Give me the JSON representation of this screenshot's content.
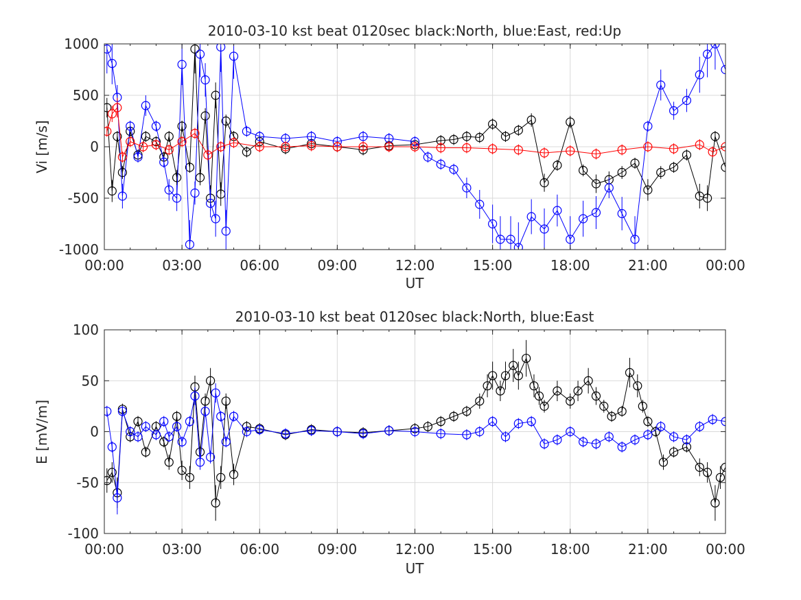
{
  "colors": {
    "north": "#000000",
    "east": "#0000ff",
    "up": "#ff0000",
    "grid": "#d9d9d9",
    "axis": "#262626"
  },
  "chart_data": [
    {
      "type": "scatter",
      "title": "2010-03-10 kst beat 0120sec black:North, blue:East, red:Up",
      "xlabel": "UT",
      "ylabel": "Vi [m/s]",
      "xlim": [
        0,
        24
      ],
      "ylim": [
        -1000,
        1000
      ],
      "xticks": [
        0,
        3,
        6,
        9,
        12,
        15,
        18,
        21,
        24
      ],
      "xticklabels": [
        "00:00",
        "03:00",
        "06:00",
        "09:00",
        "12:00",
        "15:00",
        "18:00",
        "21:00",
        "00:00"
      ],
      "yticks": [
        -1000,
        -500,
        0,
        500,
        1000
      ],
      "yticklabels": [
        "-1000",
        "-500",
        "0",
        "500",
        "1000"
      ],
      "grid": true,
      "marker": "open-circle-with-errorbar",
      "series": [
        {
          "name": "North",
          "color": "#000000",
          "points": [
            [
              0.1,
              380
            ],
            [
              0.3,
              -430
            ],
            [
              0.5,
              100
            ],
            [
              0.7,
              -250
            ],
            [
              1.0,
              150
            ],
            [
              1.3,
              -80
            ],
            [
              1.6,
              100
            ],
            [
              2.0,
              50
            ],
            [
              2.3,
              -100
            ],
            [
              2.5,
              100
            ],
            [
              2.8,
              -300
            ],
            [
              3.0,
              200
            ],
            [
              3.3,
              -200
            ],
            [
              3.5,
              950
            ],
            [
              3.7,
              -300
            ],
            [
              3.9,
              300
            ],
            [
              4.1,
              -500
            ],
            [
              4.3,
              500
            ],
            [
              4.5,
              -460
            ],
            [
              4.7,
              250
            ],
            [
              5.0,
              100
            ],
            [
              5.5,
              -50
            ],
            [
              6.0,
              50
            ],
            [
              7.0,
              -20
            ],
            [
              8.0,
              30
            ],
            [
              9.0,
              0
            ],
            [
              10.0,
              -30
            ],
            [
              11.0,
              10
            ],
            [
              12.0,
              20
            ],
            [
              13.0,
              60
            ],
            [
              13.5,
              70
            ],
            [
              14.0,
              100
            ],
            [
              14.5,
              90
            ],
            [
              15.0,
              220
            ],
            [
              15.5,
              100
            ],
            [
              16.0,
              160
            ],
            [
              16.5,
              260
            ],
            [
              17.0,
              -350
            ],
            [
              17.5,
              -180
            ],
            [
              18.0,
              240
            ],
            [
              18.5,
              -230
            ],
            [
              19.0,
              -360
            ],
            [
              19.5,
              -320
            ],
            [
              20.0,
              -250
            ],
            [
              20.5,
              -160
            ],
            [
              21.0,
              -420
            ],
            [
              21.5,
              -250
            ],
            [
              22.0,
              -200
            ],
            [
              22.5,
              -80
            ],
            [
              23.0,
              -480
            ],
            [
              23.3,
              -500
            ],
            [
              23.6,
              100
            ],
            [
              24.0,
              -200
            ]
          ]
        },
        {
          "name": "East",
          "color": "#0000ff",
          "points": [
            [
              0.1,
              950
            ],
            [
              0.3,
              810
            ],
            [
              0.5,
              480
            ],
            [
              0.7,
              -480
            ],
            [
              1.0,
              200
            ],
            [
              1.3,
              -100
            ],
            [
              1.6,
              400
            ],
            [
              2.0,
              200
            ],
            [
              2.3,
              -150
            ],
            [
              2.5,
              -420
            ],
            [
              2.8,
              -500
            ],
            [
              3.0,
              800
            ],
            [
              3.3,
              -950
            ],
            [
              3.5,
              -450
            ],
            [
              3.7,
              900
            ],
            [
              3.9,
              650
            ],
            [
              4.1,
              -550
            ],
            [
              4.3,
              -700
            ],
            [
              4.5,
              970
            ],
            [
              4.7,
              -820
            ],
            [
              5.0,
              880
            ],
            [
              5.5,
              150
            ],
            [
              6.0,
              100
            ],
            [
              7.0,
              80
            ],
            [
              8.0,
              100
            ],
            [
              9.0,
              50
            ],
            [
              10.0,
              100
            ],
            [
              11.0,
              80
            ],
            [
              12.0,
              50
            ],
            [
              12.5,
              -100
            ],
            [
              13.0,
              -170
            ],
            [
              13.5,
              -220
            ],
            [
              14.0,
              -400
            ],
            [
              14.5,
              -560
            ],
            [
              15.0,
              -750
            ],
            [
              15.3,
              -900
            ],
            [
              15.7,
              -900
            ],
            [
              16.0,
              -980
            ],
            [
              16.5,
              -680
            ],
            [
              17.0,
              -800
            ],
            [
              17.5,
              -620
            ],
            [
              18.0,
              -900
            ],
            [
              18.5,
              -700
            ],
            [
              19.0,
              -640
            ],
            [
              19.5,
              -400
            ],
            [
              20.0,
              -650
            ],
            [
              20.5,
              -900
            ],
            [
              21.0,
              200
            ],
            [
              21.5,
              600
            ],
            [
              22.0,
              350
            ],
            [
              22.5,
              450
            ],
            [
              23.0,
              700
            ],
            [
              23.3,
              900
            ],
            [
              23.6,
              1000
            ],
            [
              24.0,
              750
            ]
          ]
        },
        {
          "name": "Up",
          "color": "#ff0000",
          "points": [
            [
              0.1,
              150
            ],
            [
              0.3,
              320
            ],
            [
              0.5,
              380
            ],
            [
              0.7,
              -100
            ],
            [
              1.0,
              50
            ],
            [
              1.5,
              0
            ],
            [
              2.0,
              20
            ],
            [
              2.5,
              -30
            ],
            [
              3.0,
              50
            ],
            [
              3.5,
              130
            ],
            [
              4.0,
              -80
            ],
            [
              4.5,
              0
            ],
            [
              5.0,
              40
            ],
            [
              6.0,
              0
            ],
            [
              7.0,
              0
            ],
            [
              8.0,
              10
            ],
            [
              9.0,
              0
            ],
            [
              10.0,
              0
            ],
            [
              11.0,
              0
            ],
            [
              12.0,
              0
            ],
            [
              13.0,
              -10
            ],
            [
              14.0,
              -10
            ],
            [
              15.0,
              -20
            ],
            [
              16.0,
              -30
            ],
            [
              17.0,
              -60
            ],
            [
              18.0,
              -40
            ],
            [
              19.0,
              -70
            ],
            [
              20.0,
              -30
            ],
            [
              21.0,
              0
            ],
            [
              22.0,
              -20
            ],
            [
              23.0,
              20
            ],
            [
              23.5,
              -50
            ],
            [
              24.0,
              0
            ]
          ]
        }
      ]
    },
    {
      "type": "scatter",
      "title": "2010-03-10 kst beat 0120sec black:North, blue:East",
      "xlabel": "UT",
      "ylabel": "E [mV/m]",
      "xlim": [
        0,
        24
      ],
      "ylim": [
        -100,
        100
      ],
      "xticks": [
        0,
        3,
        6,
        9,
        12,
        15,
        18,
        21,
        24
      ],
      "xticklabels": [
        "00:00",
        "03:00",
        "06:00",
        "09:00",
        "12:00",
        "15:00",
        "18:00",
        "21:00",
        "00:00"
      ],
      "yticks": [
        -100,
        -50,
        0,
        50,
        100
      ],
      "yticklabels": [
        "-100",
        "-50",
        "0",
        "50",
        "100"
      ],
      "grid": true,
      "marker": "open-circle-with-errorbar",
      "series": [
        {
          "name": "North",
          "color": "#000000",
          "points": [
            [
              0.1,
              -48
            ],
            [
              0.3,
              -40
            ],
            [
              0.5,
              -60
            ],
            [
              0.7,
              22
            ],
            [
              1.0,
              -5
            ],
            [
              1.3,
              10
            ],
            [
              1.6,
              -20
            ],
            [
              2.0,
              5
            ],
            [
              2.3,
              -10
            ],
            [
              2.5,
              -30
            ],
            [
              2.8,
              15
            ],
            [
              3.0,
              -38
            ],
            [
              3.3,
              -45
            ],
            [
              3.5,
              44
            ],
            [
              3.7,
              -20
            ],
            [
              3.9,
              30
            ],
            [
              4.1,
              50
            ],
            [
              4.3,
              -70
            ],
            [
              4.5,
              -45
            ],
            [
              4.7,
              30
            ],
            [
              5.0,
              -42
            ],
            [
              5.5,
              5
            ],
            [
              6.0,
              3
            ],
            [
              7.0,
              -3
            ],
            [
              8.0,
              2
            ],
            [
              9.0,
              0
            ],
            [
              10.0,
              -1
            ],
            [
              11.0,
              1
            ],
            [
              12.0,
              3
            ],
            [
              12.5,
              5
            ],
            [
              13.0,
              10
            ],
            [
              13.5,
              15
            ],
            [
              14.0,
              20
            ],
            [
              14.5,
              30
            ],
            [
              14.8,
              45
            ],
            [
              15.0,
              55
            ],
            [
              15.3,
              40
            ],
            [
              15.5,
              55
            ],
            [
              15.8,
              65
            ],
            [
              16.0,
              55
            ],
            [
              16.3,
              72
            ],
            [
              16.6,
              45
            ],
            [
              16.8,
              35
            ],
            [
              17.0,
              25
            ],
            [
              17.5,
              40
            ],
            [
              18.0,
              30
            ],
            [
              18.3,
              40
            ],
            [
              18.7,
              50
            ],
            [
              19.0,
              35
            ],
            [
              19.3,
              25
            ],
            [
              19.6,
              15
            ],
            [
              20.0,
              20
            ],
            [
              20.3,
              58
            ],
            [
              20.6,
              45
            ],
            [
              20.8,
              25
            ],
            [
              21.0,
              10
            ],
            [
              21.3,
              0
            ],
            [
              21.6,
              -30
            ],
            [
              22.0,
              -20
            ],
            [
              22.5,
              -15
            ],
            [
              23.0,
              -35
            ],
            [
              23.3,
              -40
            ],
            [
              23.6,
              -70
            ],
            [
              23.8,
              -45
            ],
            [
              24.0,
              -35
            ]
          ]
        },
        {
          "name": "East",
          "color": "#0000ff",
          "points": [
            [
              0.1,
              20
            ],
            [
              0.3,
              -15
            ],
            [
              0.5,
              -65
            ],
            [
              0.7,
              20
            ],
            [
              1.0,
              0
            ],
            [
              1.3,
              -5
            ],
            [
              1.6,
              5
            ],
            [
              2.0,
              -3
            ],
            [
              2.3,
              10
            ],
            [
              2.5,
              -5
            ],
            [
              2.8,
              5
            ],
            [
              3.0,
              -10
            ],
            [
              3.3,
              10
            ],
            [
              3.5,
              35
            ],
            [
              3.7,
              -30
            ],
            [
              3.9,
              20
            ],
            [
              4.1,
              -25
            ],
            [
              4.3,
              38
            ],
            [
              4.5,
              15
            ],
            [
              4.7,
              -10
            ],
            [
              5.0,
              15
            ],
            [
              5.5,
              0
            ],
            [
              6.0,
              2
            ],
            [
              7.0,
              -2
            ],
            [
              8.0,
              1
            ],
            [
              9.0,
              0
            ],
            [
              10.0,
              -2
            ],
            [
              11.0,
              1
            ],
            [
              12.0,
              0
            ],
            [
              13.0,
              -2
            ],
            [
              14.0,
              -3
            ],
            [
              14.5,
              0
            ],
            [
              15.0,
              10
            ],
            [
              15.5,
              -5
            ],
            [
              16.0,
              8
            ],
            [
              16.5,
              10
            ],
            [
              17.0,
              -12
            ],
            [
              17.5,
              -8
            ],
            [
              18.0,
              0
            ],
            [
              18.5,
              -10
            ],
            [
              19.0,
              -12
            ],
            [
              19.5,
              -5
            ],
            [
              20.0,
              -15
            ],
            [
              20.5,
              -8
            ],
            [
              21.0,
              -3
            ],
            [
              21.5,
              5
            ],
            [
              22.0,
              -5
            ],
            [
              22.5,
              -8
            ],
            [
              23.0,
              5
            ],
            [
              23.5,
              12
            ],
            [
              24.0,
              10
            ]
          ]
        }
      ]
    }
  ]
}
